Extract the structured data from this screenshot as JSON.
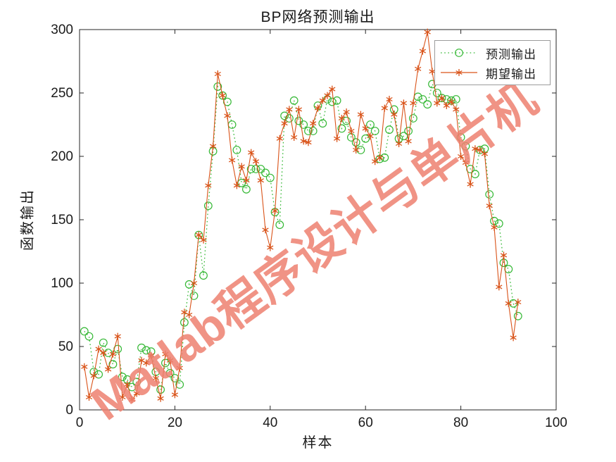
{
  "chart_data": {
    "type": "line",
    "title": "BP网络预测输出",
    "xlabel": "样本",
    "ylabel": "函数输出",
    "watermark": "Matlab程序设计与单片机",
    "xlim": [
      0,
      100
    ],
    "ylim": [
      0,
      300
    ],
    "x_ticks": [
      0,
      20,
      40,
      60,
      80,
      100
    ],
    "y_ticks": [
      0,
      50,
      100,
      150,
      200,
      250,
      300
    ],
    "grid": false,
    "legend_position": "top-right",
    "axis_color": "#262626",
    "watermark_color": "#ee8170",
    "series": [
      {
        "name": "预测输出",
        "marker": "circle",
        "line_style": "dotted",
        "color": "#35b835",
        "x_start": 1,
        "x_step": 1,
        "values": [
          62,
          58,
          30,
          28,
          53,
          45,
          36,
          48,
          26,
          24,
          18,
          22,
          49,
          47,
          46,
          30,
          16,
          37,
          29,
          25,
          20,
          69,
          99,
          90,
          138,
          106,
          161,
          204,
          255,
          248,
          243,
          225,
          205,
          179,
          174,
          190,
          190,
          190,
          187,
          183,
          156,
          146,
          232,
          230,
          244,
          228,
          225,
          220,
          220,
          240,
          226,
          245,
          243,
          244,
          222,
          228,
          215,
          211,
          205,
          214,
          225,
          220,
          198,
          199,
          221,
          237,
          214,
          216,
          220,
          230,
          247,
          245,
          241,
          257,
          250,
          246,
          245,
          244,
          245,
          215,
          208,
          190,
          186,
          205,
          206,
          170,
          149,
          147,
          116,
          111,
          84,
          74
        ]
      },
      {
        "name": "期望输出",
        "marker": "asterisk",
        "line_style": "solid",
        "color": "#d95319",
        "x_start": 1,
        "x_step": 1,
        "values": [
          34,
          10,
          27,
          48,
          45,
          32,
          44,
          58,
          10,
          20,
          8,
          13,
          39,
          37,
          43,
          25,
          9,
          44,
          39,
          12,
          33,
          77,
          75,
          100,
          138,
          134,
          177,
          208,
          265,
          248,
          232,
          197,
          177,
          192,
          181,
          203,
          196,
          181,
          142,
          128,
          157,
          214,
          226,
          237,
          215,
          237,
          212,
          211,
          226,
          238,
          244,
          248,
          253,
          214,
          230,
          235,
          220,
          205,
          233,
          222,
          216,
          196,
          199,
          238,
          245,
          233,
          210,
          242,
          212,
          242,
          269,
          283,
          298,
          267,
          242,
          246,
          240,
          243,
          237,
          200,
          195,
          178,
          206,
          205,
          202,
          161,
          144,
          97,
          122,
          84,
          57,
          85
        ]
      }
    ]
  }
}
